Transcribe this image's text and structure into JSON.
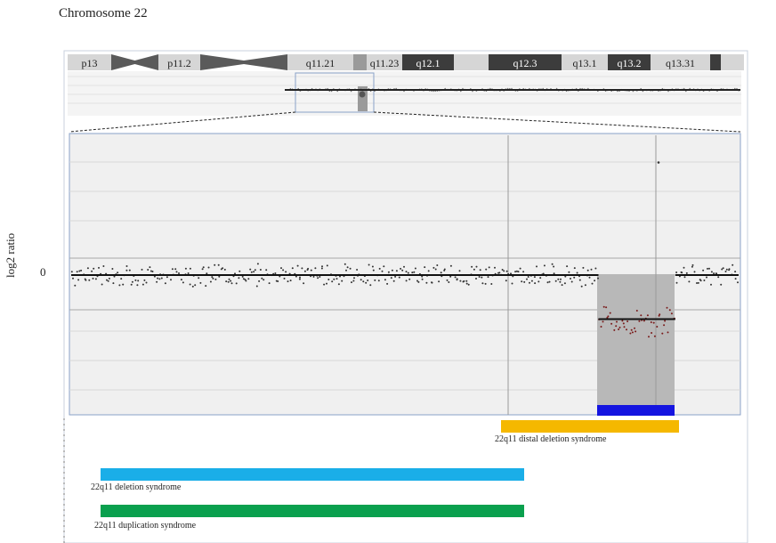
{
  "title": "Chromosome 22",
  "chart_data": {
    "type": "scatter",
    "ylabel": "log2 ratio",
    "ytick_labels": [
      "0"
    ],
    "ideogram_bands": [
      {
        "name": "p13",
        "stain": "light"
      },
      {
        "name": "",
        "stain": "centromere-p"
      },
      {
        "name": "p11.2",
        "stain": "light"
      },
      {
        "name": "",
        "stain": "centromere-q"
      },
      {
        "name": "q11.21",
        "stain": "light"
      },
      {
        "name": "",
        "stain": "mid"
      },
      {
        "name": "q11.23",
        "stain": "light"
      },
      {
        "name": "q12.1",
        "stain": "dark"
      },
      {
        "name": "",
        "stain": "light"
      },
      {
        "name": "q12.3",
        "stain": "dark"
      },
      {
        "name": "q13.1",
        "stain": "light"
      },
      {
        "name": "q13.2",
        "stain": "dark"
      },
      {
        "name": "q13.31",
        "stain": "light"
      },
      {
        "name": "",
        "stain": "dark"
      },
      {
        "name": "",
        "stain": "light"
      }
    ],
    "segments": [
      {
        "region": "normal",
        "start": 0.0,
        "end": 0.79,
        "mean": 0.0
      },
      {
        "region": "deletion",
        "start": 0.79,
        "end": 0.905,
        "mean": -0.45
      },
      {
        "region": "normal",
        "start": 0.905,
        "end": 1.0,
        "mean": 0.0
      }
    ],
    "outlier": {
      "x": 0.88,
      "y": 1.15
    },
    "syndromes": [
      {
        "name": "22q11 distal deletion syndrome",
        "color": "#f5b800"
      },
      {
        "name": "22q11 deletion syndrome",
        "color": "#1aaee8"
      },
      {
        "name": "22q11 duplication syndrome",
        "color": "#0aa04e"
      }
    ],
    "called_region_color": "#1414e0",
    "colors": {
      "point": "#333333",
      "deleted_point": "#7a1a1a",
      "shade": "#b8b8b8",
      "panel_bg": "#f0f0f0"
    }
  }
}
